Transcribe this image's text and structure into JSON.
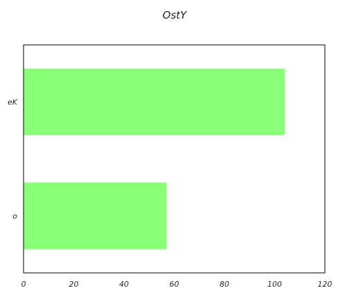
{
  "chart_data": {
    "type": "bar",
    "orientation": "horizontal",
    "title": "OstY",
    "xlabel": "",
    "ylabel": "",
    "categories": [
      "eK",
      "o"
    ],
    "values": [
      104,
      57
    ],
    "xlim": [
      0,
      120
    ],
    "xticks": [
      0,
      20,
      40,
      60,
      80,
      100,
      120
    ],
    "bar_color": "#88ff77",
    "grid": false,
    "legend": "none"
  }
}
